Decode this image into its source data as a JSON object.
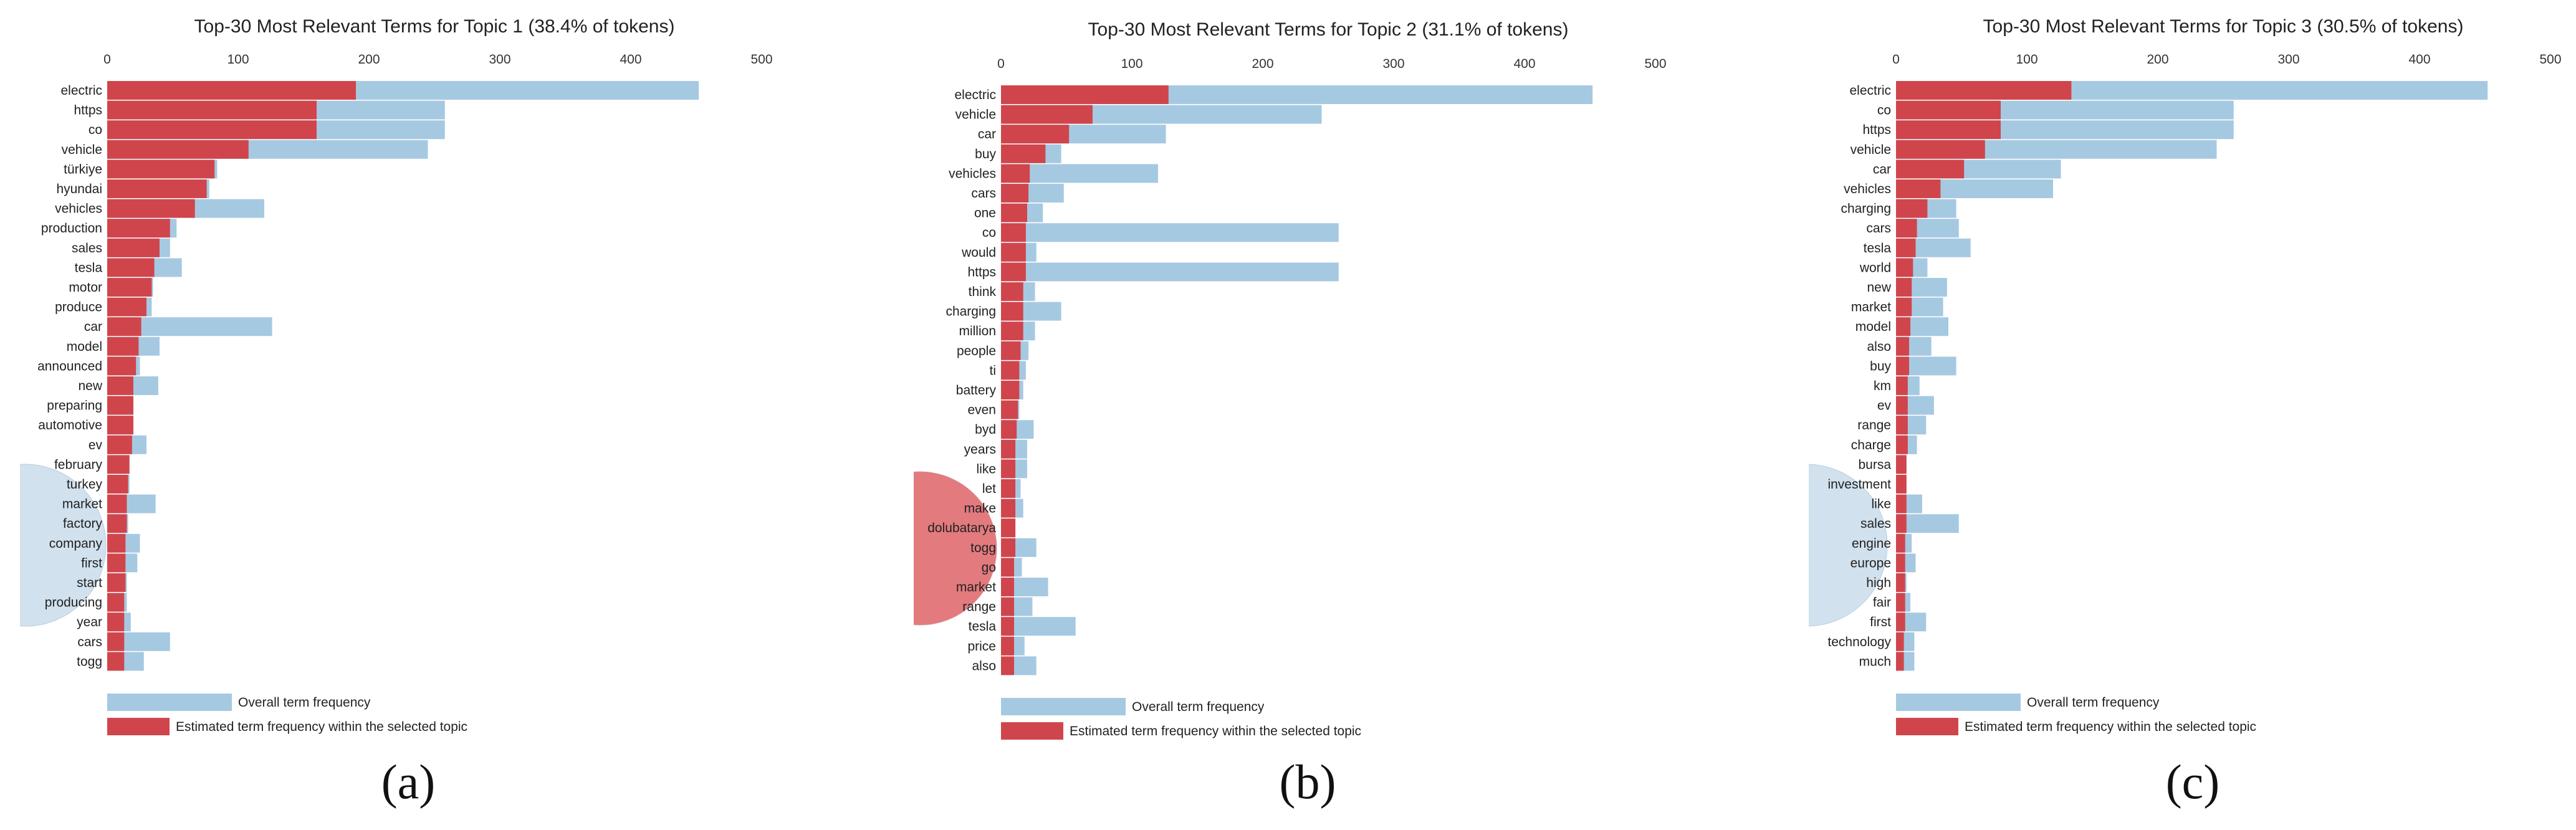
{
  "chart_data": [
    {
      "type": "bar",
      "orientation": "horizontal",
      "title": "Top-30 Most Relevant Terms for Topic 1 (38.4% of tokens)",
      "xlim": [
        0,
        500
      ],
      "xticks": [
        0,
        100,
        200,
        300,
        400,
        500
      ],
      "grid": false,
      "caption": "(a)",
      "legend": {
        "position": "bottom-left",
        "overall_label": "Overall term frequency",
        "topic_label": "Estimated term frequency within the selected topic"
      },
      "colors": {
        "overall": "#a6c9e2",
        "topic": "#d0454c",
        "circle": "#c9dcea"
      },
      "circle_highlighted": false,
      "categories": [
        "electric",
        "https",
        "co",
        "vehicle",
        "türkiye",
        "hyundai",
        "vehicles",
        "production",
        "sales",
        "tesla",
        "motor",
        "produce",
        "car",
        "model",
        "announced",
        "new",
        "preparing",
        "automotive",
        "ev",
        "february",
        "turkey",
        "market",
        "factory",
        "company",
        "first",
        "start",
        "producing",
        "year",
        "cars",
        "togg"
      ],
      "series": [
        {
          "name": "Overall term frequency",
          "values": [
            452,
            258,
            258,
            245,
            84,
            78,
            120,
            53,
            48,
            57,
            35,
            34,
            126,
            40,
            25,
            39,
            20,
            20,
            30,
            17,
            17,
            37,
            16,
            25,
            23,
            15,
            15,
            18,
            48,
            28
          ]
        },
        {
          "name": "Estimated term frequency within the selected topic",
          "values": [
            190,
            160,
            160,
            108,
            82,
            76,
            67,
            48,
            40,
            36,
            34,
            30,
            26,
            24,
            22,
            20,
            20,
            20,
            19,
            17,
            16,
            15,
            15,
            14,
            14,
            14,
            13,
            13,
            13,
            13
          ]
        }
      ]
    },
    {
      "type": "bar",
      "orientation": "horizontal",
      "title": "Top-30 Most Relevant Terms for Topic 2 (31.1% of tokens)",
      "xlim": [
        0,
        500
      ],
      "xticks": [
        0,
        100,
        200,
        300,
        400,
        500
      ],
      "grid": false,
      "caption": "(b)",
      "legend": {
        "position": "bottom-left",
        "overall_label": "Overall term frequency",
        "topic_label": "Estimated term frequency within the selected topic"
      },
      "colors": {
        "overall": "#a6c9e2",
        "topic": "#d0454c",
        "circle": "#e27a7e"
      },
      "circle_highlighted": true,
      "categories": [
        "electric",
        "vehicle",
        "car",
        "buy",
        "vehicles",
        "cars",
        "one",
        "co",
        "would",
        "https",
        "think",
        "charging",
        "million",
        "people",
        "ti",
        "battery",
        "even",
        "byd",
        "years",
        "like",
        "let",
        "make",
        "dolubatarya",
        "togg",
        "go",
        "market",
        "range",
        "tesla",
        "price",
        "also"
      ],
      "series": [
        {
          "name": "Overall term frequency",
          "values": [
            452,
            245,
            126,
            46,
            120,
            48,
            32,
            258,
            27,
            258,
            26,
            46,
            26,
            21,
            19,
            17,
            14,
            25,
            20,
            20,
            15,
            17,
            11,
            27,
            16,
            36,
            24,
            57,
            18,
            27
          ]
        },
        {
          "name": "Estimated term frequency within the selected topic",
          "values": [
            128,
            70,
            52,
            34,
            22,
            21,
            20,
            19,
            19,
            19,
            17,
            17,
            17,
            15,
            14,
            14,
            13,
            12,
            11,
            11,
            11,
            11,
            11,
            11,
            10,
            10,
            10,
            10,
            10,
            10
          ]
        }
      ]
    },
    {
      "type": "bar",
      "orientation": "horizontal",
      "title": "Top-30 Most Relevant Terms for Topic 3 (30.5% of tokens)",
      "xlim": [
        0,
        500
      ],
      "xticks": [
        0,
        100,
        200,
        300,
        400,
        500
      ],
      "grid": false,
      "caption": "(c)",
      "legend": {
        "position": "bottom-left",
        "overall_label": "Overall term frequency",
        "topic_label": "Estimated term frequency within the selected topic"
      },
      "colors": {
        "overall": "#a6c9e2",
        "topic": "#d0454c",
        "circle": "#c9dcea"
      },
      "circle_highlighted": false,
      "categories": [
        "electric",
        "co",
        "https",
        "vehicle",
        "car",
        "vehicles",
        "charging",
        "cars",
        "tesla",
        "world",
        "new",
        "market",
        "model",
        "also",
        "buy",
        "km",
        "ev",
        "range",
        "charge",
        "bursa",
        "investment",
        "like",
        "sales",
        "engine",
        "europe",
        "high",
        "fair",
        "first",
        "technology",
        "much"
      ],
      "series": [
        {
          "name": "Overall term frequency",
          "values": [
            452,
            258,
            258,
            245,
            126,
            120,
            46,
            48,
            57,
            24,
            39,
            36,
            40,
            27,
            46,
            18,
            29,
            23,
            16,
            8,
            8,
            20,
            48,
            12,
            15,
            8,
            11,
            23,
            14,
            14
          ]
        },
        {
          "name": "Estimated term frequency within the selected topic",
          "values": [
            134,
            80,
            80,
            68,
            52,
            34,
            24,
            16,
            15,
            13,
            12,
            12,
            11,
            10,
            10,
            9,
            9,
            9,
            9,
            8,
            8,
            8,
            8,
            7,
            7,
            7,
            7,
            7,
            6,
            6
          ]
        }
      ]
    }
  ]
}
